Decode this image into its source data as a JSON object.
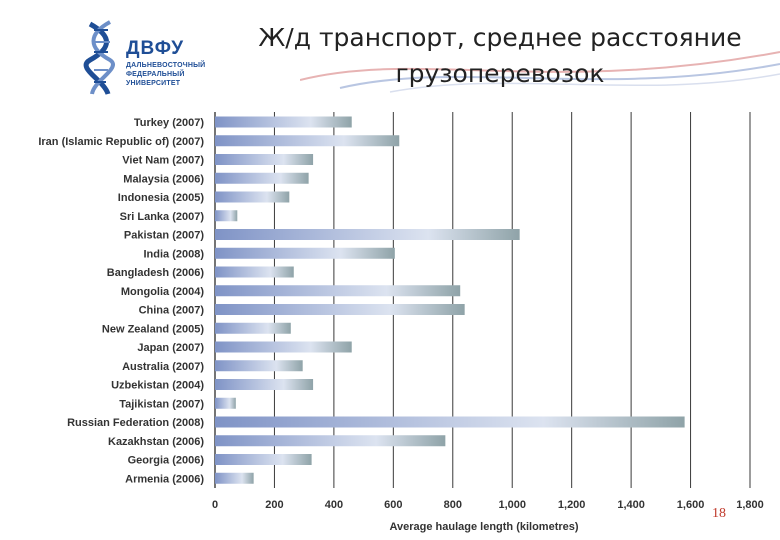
{
  "header": {
    "title_line1": "Ж/д транспорт, среднее расстояние",
    "title_line2": "грузоперевозок"
  },
  "logo": {
    "abbr": "ДВФУ",
    "line1": "ДАЛЬНЕВОСТОЧНЫЙ",
    "line2": "ФЕДЕРАЛЬНЫЙ",
    "line3": "УНИВЕРСИТЕТ",
    "icon": "dna-helix-icon",
    "color": "#1f4e96"
  },
  "page_number": "18",
  "chart_data": {
    "type": "bar",
    "orientation": "horizontal",
    "title": "",
    "xlabel": "Average haulage length (kilometres)",
    "ylabel": "",
    "xlim": [
      0,
      1800
    ],
    "xticks": [
      0,
      200,
      400,
      600,
      800,
      1000,
      1200,
      1400,
      1600,
      1800
    ],
    "xtick_labels": [
      "0",
      "200",
      "400",
      "600",
      "800",
      "1,000",
      "1,200",
      "1,400",
      "1,600",
      "1,800"
    ],
    "grid": "vertical",
    "legend": "none",
    "colors": {
      "bar_start": "#7f93c6",
      "bar_mid": "#dce3f0",
      "bar_end": "#8fa3a8",
      "grid": "#3a3a3a"
    },
    "categories": [
      "Turkey (2007)",
      "Iran (Islamic Republic of) (2007)",
      "Viet Nam (2007)",
      "Malaysia (2006)",
      "Indonesia (2005)",
      "Sri Lanka (2007)",
      "Pakistan (2007)",
      "India (2008)",
      "Bangladesh (2006)",
      "Mongolia (2004)",
      "China (2007)",
      "New Zealand (2005)",
      "Japan (2007)",
      "Australia  (2007)",
      "Uzbekistan (2004)",
      "Tajikistan (2007)",
      "Russian Federation (2008)",
      "Kazakhstan (2006)",
      "Georgia (2006)",
      "Armenia (2006)"
    ],
    "values": [
      460,
      620,
      330,
      315,
      250,
      75,
      1025,
      605,
      265,
      825,
      840,
      255,
      460,
      295,
      330,
      70,
      1580,
      775,
      325,
      130
    ]
  }
}
